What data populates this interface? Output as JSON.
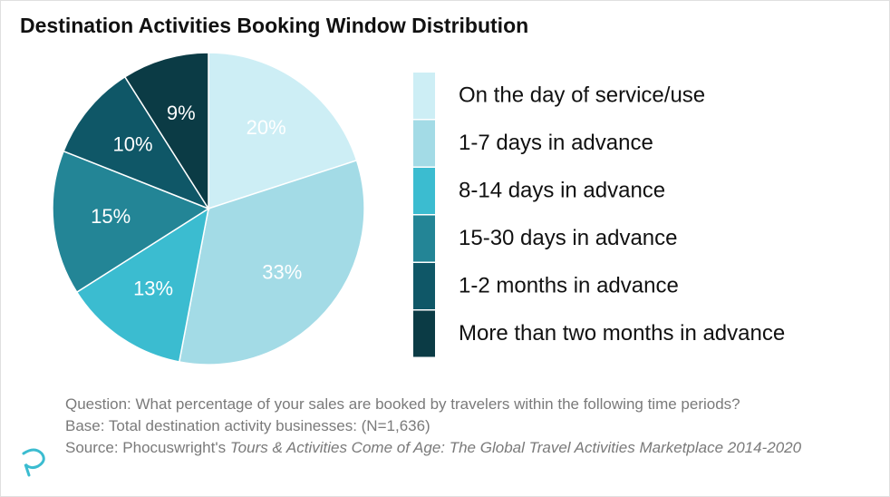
{
  "chart_data": {
    "type": "pie",
    "title": "Destination Activities Booking Window Distribution",
    "categories": [
      "On the day of service/use",
      "1-7 days in advance",
      "8-14 days in advance",
      "15-30 days in advance",
      "1-2 months in advance",
      "More than two months in advance"
    ],
    "values": [
      20,
      33,
      13,
      15,
      10,
      9
    ],
    "value_labels": [
      "20%",
      "33%",
      "13%",
      "15%",
      "10%",
      "9%"
    ],
    "colors": [
      "#cdeef5",
      "#a3dbe6",
      "#3bbcd0",
      "#238596",
      "#0f5767",
      "#0b3b45"
    ],
    "legend": "right",
    "notes": {
      "question": "Question: What percentage of your sales are booked by travelers within the following time periods?",
      "base": "Base: Total destination activity businesses:  (N=1,636)",
      "source": "Source: Phocuswright's",
      "source_title": "Tours & Activities Come of Age: The Global Travel Activities Marketplace 2014-2020"
    }
  }
}
